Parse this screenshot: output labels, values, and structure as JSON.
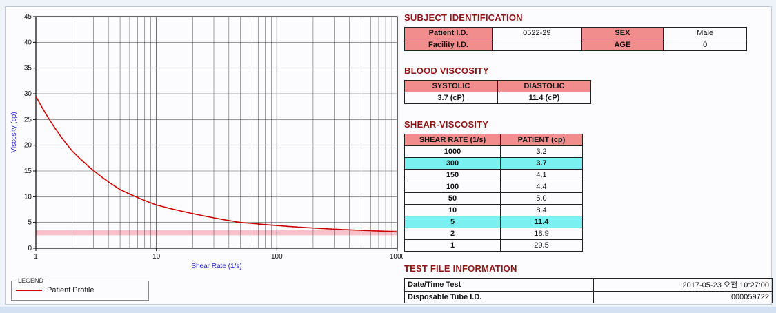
{
  "chart_data": {
    "type": "line",
    "title": "",
    "xlabel": "Shear Rate (1/s)",
    "ylabel": "Viscosity (cp)",
    "xscale": "log",
    "xlim": [
      1,
      1000
    ],
    "ylim": [
      0,
      45
    ],
    "ytick_step": 5,
    "xticks": [
      1,
      10,
      100,
      1000
    ],
    "x": [
      1,
      2,
      5,
      10,
      50,
      100,
      150,
      300,
      1000
    ],
    "series": [
      {
        "name": "Patient Profile",
        "color": "#cc0000",
        "values": [
          29.5,
          18.9,
          11.4,
          8.4,
          5.0,
          4.4,
          4.1,
          3.7,
          3.2
        ]
      }
    ],
    "band": {
      "y_low": 2.5,
      "y_high": 3.5,
      "color": "#f6bfca"
    },
    "grid": true,
    "legend_position": "bottom-left",
    "axis_label_color": "#2323bb",
    "tick_label_color": "#111111"
  },
  "legend": {
    "title": "LEGEND",
    "items": [
      {
        "label": "Patient Profile",
        "color": "#cc0000"
      }
    ]
  },
  "subject": {
    "title": "SUBJECT IDENTIFICATION",
    "rows": [
      {
        "label1": "Patient I.D.",
        "value1": "0522-29",
        "label2": "SEX",
        "value2": "Male"
      },
      {
        "label1": "Facility I.D.",
        "value1": "",
        "label2": "AGE",
        "value2": "0"
      }
    ]
  },
  "blood": {
    "title": "BLOOD VISCOSITY",
    "headers": [
      "SYSTOLIC",
      "DIASTOLIC"
    ],
    "values": [
      "3.7 (cP)",
      "11.4 (cP)"
    ]
  },
  "shear": {
    "title": "SHEAR-VISCOSITY",
    "headers": [
      "SHEAR RATE (1/s)",
      "PATIENT (cp)"
    ],
    "rows": [
      {
        "rate": "1000",
        "value": "3.2",
        "highlight": false
      },
      {
        "rate": "300",
        "value": "3.7",
        "highlight": true
      },
      {
        "rate": "150",
        "value": "4.1",
        "highlight": false
      },
      {
        "rate": "100",
        "value": "4.4",
        "highlight": false
      },
      {
        "rate": "50",
        "value": "5.0",
        "highlight": false
      },
      {
        "rate": "10",
        "value": "8.4",
        "highlight": false
      },
      {
        "rate": "5",
        "value": "11.4",
        "highlight": true
      },
      {
        "rate": "2",
        "value": "18.9",
        "highlight": false
      },
      {
        "rate": "1",
        "value": "29.5",
        "highlight": false
      }
    ]
  },
  "testfile": {
    "title": "TEST FILE INFORMATION",
    "rows": [
      {
        "label": "Date/Time Test",
        "value": "2017-05-23  오전 10:27:00"
      },
      {
        "label": "Disposable Tube I.D.",
        "value": "000059722"
      }
    ]
  },
  "colors": {
    "section_title": "#8f1414",
    "header_cell": "#f28d8d",
    "highlight_cell": "#7bf0f0",
    "curve": "#cc0000",
    "reference_band": "#f6bfca",
    "bottom_strip": "#d4e1f3"
  }
}
